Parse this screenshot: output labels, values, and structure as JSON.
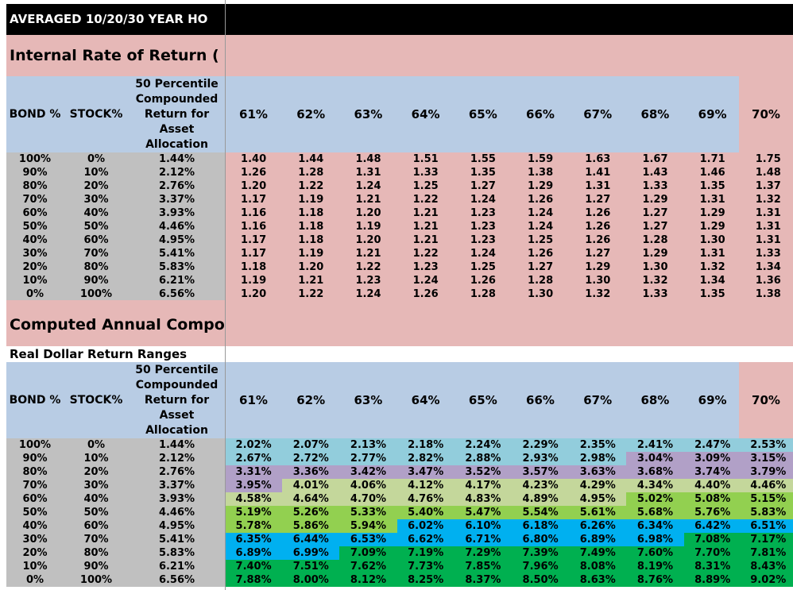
{
  "title": "AVERAGED 10/20/30 YEAR HO",
  "section1": {
    "title": "Internal Rate of Return ("
  },
  "section2": {
    "title": "Computed Annual Compo",
    "subtitle": "Real Dollar Return Ranges"
  },
  "headers": {
    "bond": "BOND %",
    "stock": "STOCK%",
    "median": "50 Percentile Compounded Return for Asset Allocation"
  },
  "columns": [
    "61%",
    "62%",
    "63%",
    "64%",
    "65%",
    "66%",
    "67%",
    "68%",
    "69%",
    "70%"
  ],
  "allocations": [
    {
      "bond": "100%",
      "stock": "0%",
      "median": "1.44%"
    },
    {
      "bond": "90%",
      "stock": "10%",
      "median": "2.12%"
    },
    {
      "bond": "80%",
      "stock": "20%",
      "median": "2.76%"
    },
    {
      "bond": "70%",
      "stock": "30%",
      "median": "3.37%"
    },
    {
      "bond": "60%",
      "stock": "40%",
      "median": "3.93%"
    },
    {
      "bond": "50%",
      "stock": "50%",
      "median": "4.46%"
    },
    {
      "bond": "40%",
      "stock": "60%",
      "median": "4.95%"
    },
    {
      "bond": "30%",
      "stock": "70%",
      "median": "5.41%"
    },
    {
      "bond": "20%",
      "stock": "80%",
      "median": "5.83%"
    },
    {
      "bond": "10%",
      "stock": "90%",
      "median": "6.21%"
    },
    {
      "bond": "0%",
      "stock": "100%",
      "median": "6.56%"
    }
  ],
  "irr": [
    [
      "1.40",
      "1.44",
      "1.48",
      "1.51",
      "1.55",
      "1.59",
      "1.63",
      "1.67",
      "1.71",
      "1.75"
    ],
    [
      "1.26",
      "1.28",
      "1.31",
      "1.33",
      "1.35",
      "1.38",
      "1.41",
      "1.43",
      "1.46",
      "1.48"
    ],
    [
      "1.20",
      "1.22",
      "1.24",
      "1.25",
      "1.27",
      "1.29",
      "1.31",
      "1.33",
      "1.35",
      "1.37"
    ],
    [
      "1.17",
      "1.19",
      "1.21",
      "1.22",
      "1.24",
      "1.26",
      "1.27",
      "1.29",
      "1.31",
      "1.32"
    ],
    [
      "1.16",
      "1.18",
      "1.20",
      "1.21",
      "1.23",
      "1.24",
      "1.26",
      "1.27",
      "1.29",
      "1.31"
    ],
    [
      "1.16",
      "1.18",
      "1.19",
      "1.21",
      "1.23",
      "1.24",
      "1.26",
      "1.27",
      "1.29",
      "1.31"
    ],
    [
      "1.17",
      "1.18",
      "1.20",
      "1.21",
      "1.23",
      "1.25",
      "1.26",
      "1.28",
      "1.30",
      "1.31"
    ],
    [
      "1.17",
      "1.19",
      "1.21",
      "1.22",
      "1.24",
      "1.26",
      "1.27",
      "1.29",
      "1.31",
      "1.33"
    ],
    [
      "1.18",
      "1.20",
      "1.22",
      "1.23",
      "1.25",
      "1.27",
      "1.29",
      "1.30",
      "1.32",
      "1.34"
    ],
    [
      "1.19",
      "1.21",
      "1.23",
      "1.24",
      "1.26",
      "1.28",
      "1.30",
      "1.32",
      "1.34",
      "1.36"
    ],
    [
      "1.20",
      "1.22",
      "1.24",
      "1.26",
      "1.28",
      "1.30",
      "1.32",
      "1.33",
      "1.35",
      "1.38"
    ]
  ],
  "real_returns": [
    [
      "2.02%",
      "2.07%",
      "2.13%",
      "2.18%",
      "2.24%",
      "2.29%",
      "2.35%",
      "2.41%",
      "2.47%",
      "2.53%"
    ],
    [
      "2.67%",
      "2.72%",
      "2.77%",
      "2.82%",
      "2.88%",
      "2.93%",
      "2.98%",
      "3.04%",
      "3.09%",
      "3.15%"
    ],
    [
      "3.31%",
      "3.36%",
      "3.42%",
      "3.47%",
      "3.52%",
      "3.57%",
      "3.63%",
      "3.68%",
      "3.74%",
      "3.79%"
    ],
    [
      "3.95%",
      "4.01%",
      "4.06%",
      "4.12%",
      "4.17%",
      "4.23%",
      "4.29%",
      "4.34%",
      "4.40%",
      "4.46%"
    ],
    [
      "4.58%",
      "4.64%",
      "4.70%",
      "4.76%",
      "4.83%",
      "4.89%",
      "4.95%",
      "5.02%",
      "5.08%",
      "5.15%"
    ],
    [
      "5.19%",
      "5.26%",
      "5.33%",
      "5.40%",
      "5.47%",
      "5.54%",
      "5.61%",
      "5.68%",
      "5.76%",
      "5.83%"
    ],
    [
      "5.78%",
      "5.86%",
      "5.94%",
      "6.02%",
      "6.10%",
      "6.18%",
      "6.26%",
      "6.34%",
      "6.42%",
      "6.51%"
    ],
    [
      "6.35%",
      "6.44%",
      "6.53%",
      "6.62%",
      "6.71%",
      "6.80%",
      "6.89%",
      "6.98%",
      "7.08%",
      "7.17%"
    ],
    [
      "6.89%",
      "6.99%",
      "7.09%",
      "7.19%",
      "7.29%",
      "7.39%",
      "7.49%",
      "7.60%",
      "7.70%",
      "7.81%"
    ],
    [
      "7.40%",
      "7.51%",
      "7.62%",
      "7.73%",
      "7.85%",
      "7.96%",
      "8.08%",
      "8.19%",
      "8.31%",
      "8.43%"
    ],
    [
      "7.88%",
      "8.00%",
      "8.12%",
      "8.25%",
      "8.37%",
      "8.50%",
      "8.63%",
      "8.76%",
      "8.89%",
      "9.02%"
    ]
  ],
  "colors": {
    "title_bg": "#000000",
    "section_bg": "#e6b8b7",
    "header_bg": "#b8cce4",
    "left_bg": "#c0c0c0",
    "bands": [
      {
        "below": 3,
        "color": "#92cddc"
      },
      {
        "below": 4,
        "color": "#b1a0c7"
      },
      {
        "below": 5,
        "color": "#c4d79b"
      },
      {
        "below": 6,
        "color": "#92d050"
      },
      {
        "below": 7,
        "color": "#00b0f0"
      },
      {
        "below": 100,
        "color": "#00b050"
      }
    ]
  }
}
